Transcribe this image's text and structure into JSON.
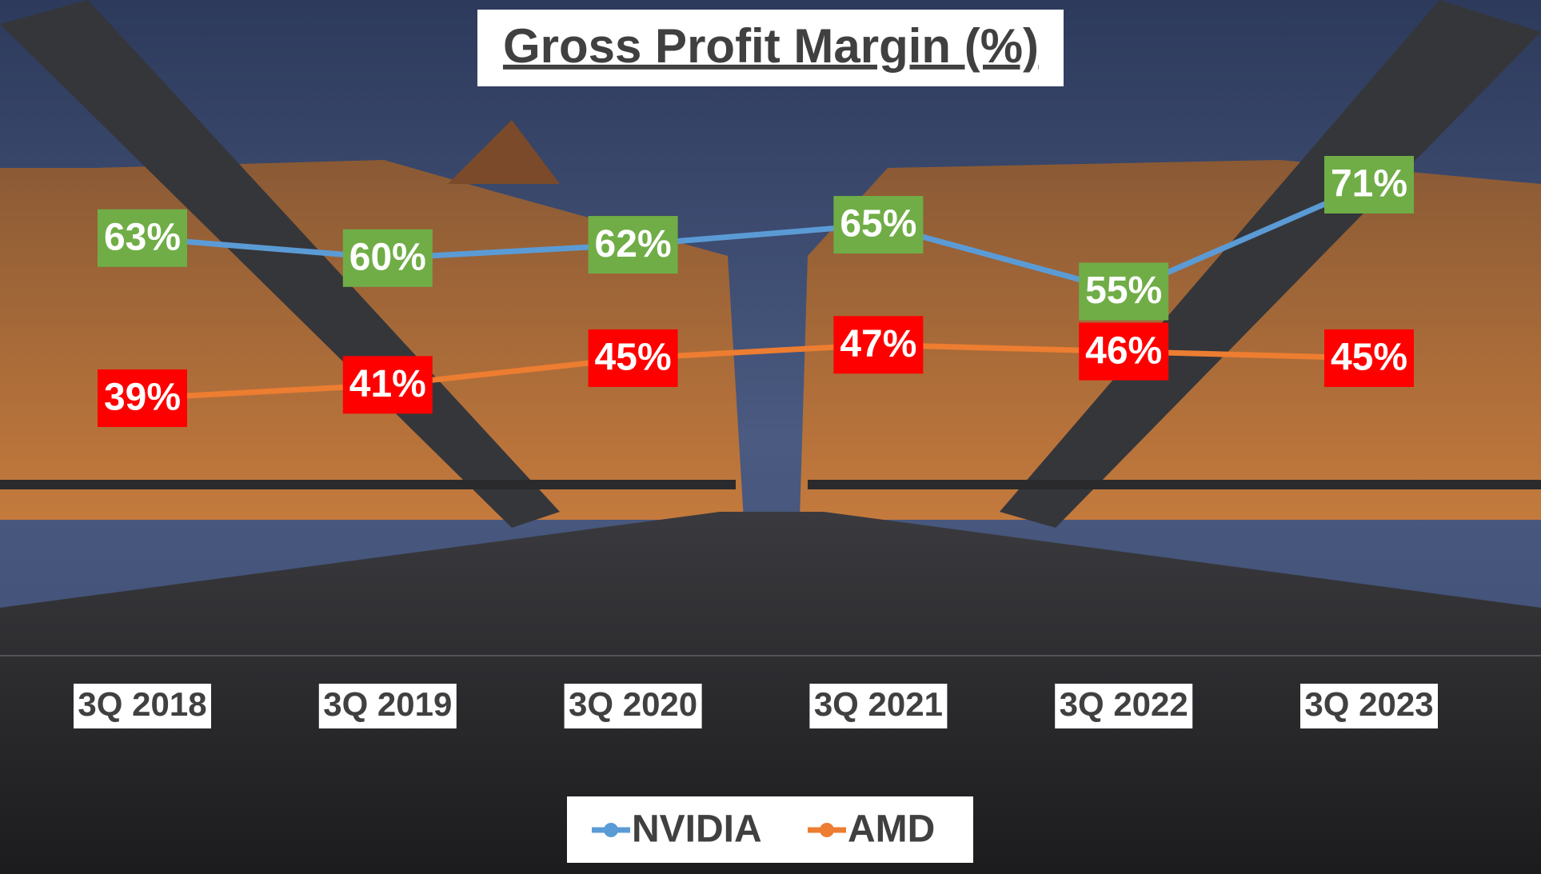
{
  "chart_data": {
    "type": "line",
    "title": "Gross Profit Margin (%)",
    "categories": [
      "3Q 2018",
      "3Q 2019",
      "3Q 2020",
      "3Q 2021",
      "3Q 2022",
      "3Q 2023"
    ],
    "series": [
      {
        "name": "NVIDIA",
        "color": "#5b9bd5",
        "label_color": "#70ad47",
        "values": [
          63,
          60,
          62,
          65,
          55,
          71
        ],
        "value_labels": [
          "63%",
          "60%",
          "62%",
          "65%",
          "55%",
          "71%"
        ]
      },
      {
        "name": "AMD",
        "color": "#ed7d31",
        "label_color": "#ff0000",
        "values": [
          39,
          41,
          45,
          47,
          46,
          45
        ],
        "value_labels": [
          "39%",
          "41%",
          "45%",
          "47%",
          "46%",
          "45%"
        ]
      }
    ],
    "legend": "bottom"
  }
}
